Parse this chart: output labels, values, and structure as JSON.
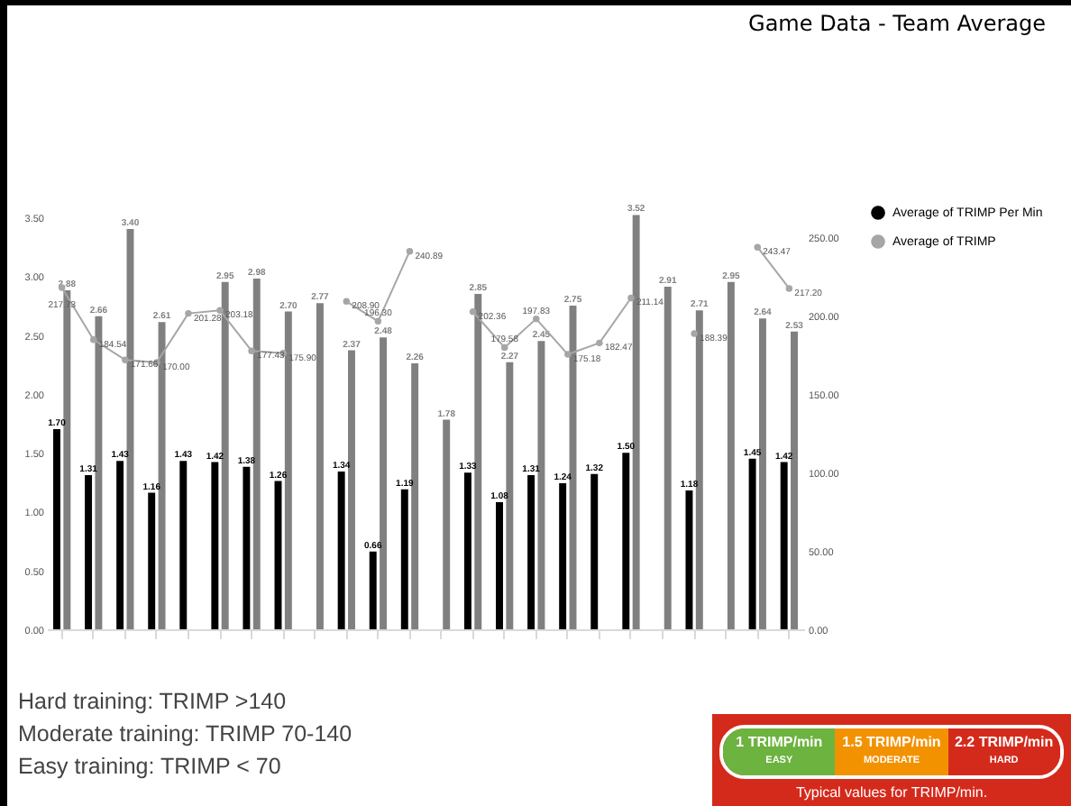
{
  "chart_data": {
    "type": "bar",
    "title": "Game Data - Team Average",
    "categories": [
      null,
      null,
      null,
      null,
      null,
      null,
      null,
      null,
      null,
      null,
      null,
      null,
      null,
      null,
      null,
      null,
      null,
      null,
      null,
      null,
      null,
      null,
      null,
      null
    ],
    "series": [
      {
        "name": "Average of TRIMP Per Min",
        "color": "#000000",
        "values": [
          1.7,
          1.31,
          1.43,
          1.16,
          1.43,
          1.42,
          1.38,
          1.26,
          null,
          1.34,
          0.66,
          1.19,
          null,
          1.33,
          1.08,
          1.31,
          1.24,
          1.32,
          1.5,
          null,
          1.18,
          null,
          1.45,
          1.42
        ],
        "value_labels": [
          "1.70",
          "1.31",
          "1.43",
          "1.16",
          "1.43",
          "1.42",
          "1.38",
          "1.26",
          null,
          "1.34",
          "0.66",
          "1.19",
          null,
          "1.33",
          "1.08",
          "1.31",
          "1.24",
          "1.32",
          "1.50",
          null,
          "1.18",
          null,
          "1.45",
          "1.42"
        ]
      },
      {
        "color": "#808080",
        "values": [
          2.88,
          2.66,
          3.4,
          2.61,
          null,
          2.95,
          2.98,
          2.7,
          2.77,
          2.37,
          2.48,
          2.26,
          1.78,
          2.85,
          2.27,
          2.45,
          2.75,
          null,
          3.52,
          2.91,
          2.71,
          2.95,
          2.64,
          2.53
        ],
        "value_labels": [
          "2.88",
          "2.66",
          "3.40",
          "2.61",
          null,
          "2.95",
          "2.98",
          "2.70",
          "2.77",
          "2.37",
          "2.48",
          "2.26",
          "1.78",
          "2.85",
          "2.27",
          "2.45",
          "2.75",
          null,
          "3.52",
          "2.91",
          "2.71",
          "2.95",
          "2.64",
          "2.53"
        ]
      },
      {
        "name": "Average of TRIMP",
        "type": "line",
        "axis": "y2",
        "color": "#a6a6a6",
        "values": [
          217.73,
          184.54,
          171.66,
          170.0,
          201.28,
          203.18,
          177.43,
          175.9,
          null,
          208.9,
          196.3,
          240.89,
          null,
          202.36,
          179.58,
          197.83,
          175.18,
          182.47,
          211.14,
          null,
          188.39,
          null,
          243.47,
          217.2
        ],
        "value_labels": [
          "217.73",
          "184.54",
          "171.66",
          "170.00",
          "201.28",
          "203.18",
          "177.43",
          "175.90",
          null,
          "208.90",
          "196.30",
          "240.89",
          null,
          "202.36",
          "179.58",
          "197.83",
          "175.18",
          "182.47",
          "211.14",
          null,
          "188.39",
          null,
          "243.47",
          "217.20"
        ]
      }
    ],
    "ylim": [
      0,
      3.6
    ],
    "yticks": [
      {
        "value": 0,
        "label": "0.00"
      },
      {
        "value": 0.5,
        "label": "0.50"
      },
      {
        "value": 1,
        "label": "1.00"
      },
      {
        "value": 1.5,
        "label": "1.50"
      },
      {
        "value": 2,
        "label": "2.00"
      },
      {
        "value": 2.5,
        "label": "2.50"
      },
      {
        "value": 3,
        "label": "3.00"
      },
      {
        "value": 3.5,
        "label": "3.50"
      }
    ],
    "y2lim": [
      0,
      270
    ],
    "y2ticks": [
      {
        "value": 0,
        "label": "0.00"
      },
      {
        "value": 50,
        "label": "50.00"
      },
      {
        "value": 100,
        "label": "100.00"
      },
      {
        "value": 150,
        "label": "150.00"
      },
      {
        "value": 200,
        "label": "200.00"
      },
      {
        "value": 250,
        "label": "250.00"
      }
    ],
    "grid": false,
    "legend": "right",
    "marker": "circle",
    "annotations": [
      "Hard training: TRIMP >140",
      "Moderate training: TRIMP 70-140",
      "Easy training: TRIMP < 70",
      "1 TRIMP/min",
      "EASY",
      "1.5 TRIMP/min",
      "MODERATE",
      "2.2 TRIMP/min",
      "HARD",
      "Typical values for TRIMP/min."
    ]
  }
}
